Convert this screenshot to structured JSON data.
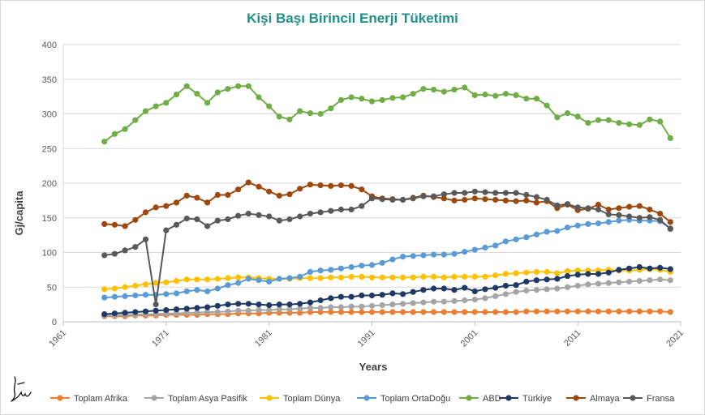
{
  "chart_data": {
    "type": "line",
    "title": "Kişi Başı Birincil Enerji Tüketimi",
    "xlabel": "Years",
    "ylabel": "Gj/capita",
    "xlim": [
      1961,
      2021
    ],
    "ylim": [
      0,
      400
    ],
    "x_ticks": [
      "1961",
      "1971",
      "1981",
      "1991",
      "2001",
      "2011",
      "2021"
    ],
    "y_ticks": [
      "0",
      "50",
      "100",
      "150",
      "200",
      "250",
      "300",
      "350",
      "400"
    ],
    "grid": "horizontal",
    "legend_position": "bottom",
    "x": [
      1965,
      1966,
      1967,
      1968,
      1969,
      1970,
      1971,
      1972,
      1973,
      1974,
      1975,
      1976,
      1977,
      1978,
      1979,
      1980,
      1981,
      1982,
      1983,
      1984,
      1985,
      1986,
      1987,
      1988,
      1989,
      1990,
      1991,
      1992,
      1993,
      1994,
      1995,
      1996,
      1997,
      1998,
      1999,
      2000,
      2001,
      2002,
      2003,
      2004,
      2005,
      2006,
      2007,
      2008,
      2009,
      2010,
      2011,
      2012,
      2013,
      2014,
      2015,
      2016,
      2017,
      2018,
      2019,
      2020
    ],
    "series": [
      {
        "name": "Toplam Afrika",
        "color": "#ed7d31",
        "values": [
          8,
          8,
          8,
          9,
          9,
          9,
          10,
          10,
          10,
          10,
          11,
          11,
          11,
          12,
          12,
          12,
          13,
          13,
          13,
          13,
          14,
          14,
          14,
          14,
          14,
          14,
          14,
          14,
          14,
          14,
          14,
          14,
          14,
          14,
          14,
          14,
          14,
          14,
          14,
          14,
          14,
          15,
          15,
          15,
          15,
          15,
          15,
          15,
          15,
          15,
          15,
          15,
          15,
          15,
          15,
          14
        ]
      },
      {
        "name": "Toplam Asya Pasifik",
        "color": "#a5a5a5",
        "values": [
          9,
          9,
          10,
          10,
          11,
          11,
          12,
          12,
          13,
          13,
          14,
          14,
          15,
          16,
          16,
          17,
          17,
          18,
          18,
          19,
          20,
          20,
          21,
          21,
          22,
          22,
          23,
          24,
          25,
          26,
          27,
          28,
          29,
          29,
          30,
          31,
          32,
          34,
          37,
          40,
          43,
          45,
          46,
          47,
          48,
          50,
          52,
          54,
          55,
          56,
          57,
          58,
          59,
          60,
          61,
          60
        ]
      },
      {
        "name": "Toplam Dünya",
        "color": "#ffc000",
        "values": [
          47,
          48,
          50,
          52,
          54,
          56,
          57,
          59,
          61,
          61,
          61,
          62,
          63,
          64,
          64,
          63,
          62,
          62,
          62,
          63,
          63,
          63,
          64,
          64,
          65,
          65,
          64,
          64,
          64,
          64,
          64,
          65,
          65,
          64,
          65,
          65,
          65,
          65,
          67,
          69,
          70,
          71,
          72,
          72,
          70,
          73,
          74,
          74,
          74,
          75,
          74,
          74,
          75,
          76,
          75,
          72
        ]
      },
      {
        "name": "Toplam OrtaDoğu",
        "color": "#5b9bd5",
        "values": [
          35,
          36,
          37,
          38,
          39,
          39,
          40,
          41,
          44,
          46,
          44,
          48,
          53,
          56,
          62,
          60,
          58,
          62,
          63,
          65,
          72,
          74,
          75,
          77,
          79,
          81,
          82,
          85,
          90,
          94,
          95,
          96,
          97,
          97,
          98,
          101,
          104,
          107,
          110,
          116,
          119,
          122,
          126,
          130,
          131,
          136,
          139,
          141,
          142,
          144,
          146,
          147,
          146,
          146,
          145,
          135
        ]
      },
      {
        "name": "ABD",
        "color": "#70ad47",
        "values": [
          260,
          271,
          278,
          291,
          304,
          311,
          316,
          328,
          340,
          329,
          316,
          331,
          336,
          340,
          340,
          324,
          311,
          296,
          292,
          304,
          301,
          300,
          308,
          320,
          324,
          322,
          318,
          320,
          323,
          324,
          329,
          336,
          335,
          332,
          335,
          338,
          327,
          328,
          326,
          329,
          327,
          322,
          322,
          312,
          295,
          301,
          296,
          287,
          291,
          291,
          287,
          285,
          284,
          292,
          289,
          265
        ]
      },
      {
        "name": "Türkiye",
        "color": "#203864",
        "values": [
          11,
          12,
          13,
          14,
          15,
          16,
          17,
          18,
          19,
          20,
          21,
          23,
          25,
          26,
          26,
          25,
          24,
          25,
          25,
          26,
          28,
          31,
          34,
          36,
          36,
          38,
          38,
          39,
          41,
          40,
          43,
          46,
          48,
          48,
          46,
          49,
          44,
          47,
          49,
          52,
          53,
          58,
          60,
          61,
          62,
          66,
          68,
          69,
          69,
          71,
          75,
          77,
          79,
          77,
          78,
          76
        ]
      },
      {
        "name": "Almaya",
        "color": "#9e480e",
        "values": [
          141,
          140,
          138,
          147,
          158,
          165,
          167,
          172,
          182,
          179,
          172,
          183,
          183,
          191,
          201,
          195,
          188,
          182,
          184,
          192,
          198,
          197,
          196,
          197,
          196,
          191,
          181,
          178,
          177,
          176,
          179,
          182,
          180,
          178,
          175,
          176,
          178,
          177,
          176,
          175,
          174,
          175,
          172,
          174,
          164,
          169,
          161,
          163,
          169,
          162,
          164,
          166,
          167,
          162,
          156,
          144
        ]
      },
      {
        "name": "Fransa",
        "color": "#595959",
        "values": [
          96,
          98,
          103,
          108,
          119,
          25,
          132,
          140,
          149,
          148,
          138,
          146,
          148,
          153,
          156,
          154,
          152,
          146,
          148,
          152,
          156,
          158,
          160,
          162,
          162,
          167,
          178,
          177,
          176,
          176,
          178,
          181,
          181,
          184,
          186,
          186,
          188,
          187,
          186,
          186,
          186,
          183,
          180,
          176,
          168,
          170,
          165,
          164,
          162,
          155,
          154,
          152,
          150,
          151,
          147,
          134
        ]
      }
    ]
  }
}
